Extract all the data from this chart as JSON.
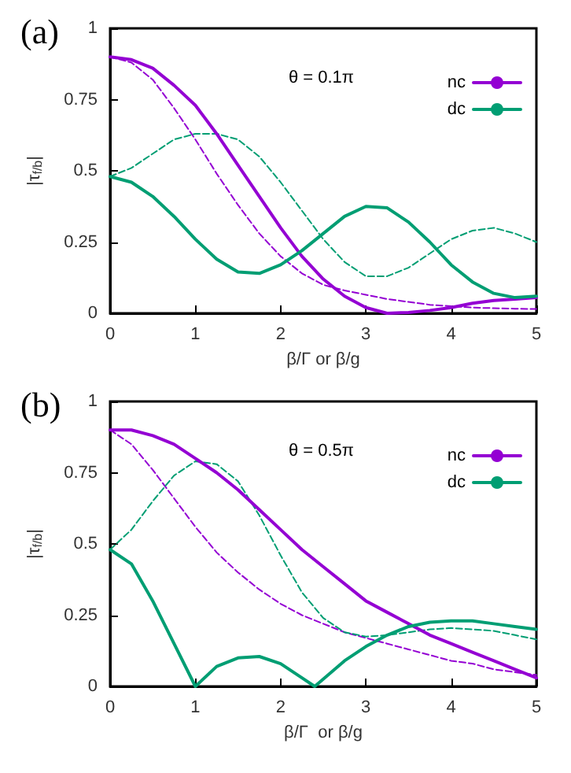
{
  "chart_data": [
    {
      "type": "line",
      "title": "(a)",
      "xlabel": "β/Γ or β/g",
      "ylabel": "|τ$_{f/b}$|",
      "annotations": [
        "θ = 0.1π"
      ],
      "x": [
        0,
        0.25,
        0.5,
        0.75,
        1,
        1.25,
        1.5,
        1.75,
        2,
        2.25,
        2.5,
        2.75,
        3,
        3.25,
        3.5,
        3.75,
        4,
        4.25,
        4.5,
        4.75,
        5
      ],
      "xlim": [
        0,
        5
      ],
      "xticks": [
        0,
        1,
        2,
        3,
        4,
        5
      ],
      "ylim": [
        0,
        1
      ],
      "yticks": [
        0,
        0.25,
        0.5,
        0.75,
        1
      ],
      "grid": false,
      "legend": "top right",
      "series": [
        {
          "name": "nc",
          "color": "#9400d3",
          "line_style": "solid",
          "values": [
            0.9,
            0.89,
            0.86,
            0.8,
            0.73,
            0.63,
            0.52,
            0.41,
            0.3,
            0.2,
            0.12,
            0.06,
            0.02,
            0,
            0.003,
            0.01,
            0.02,
            0.035,
            0.045,
            0.05,
            0.055
          ]
        },
        {
          "name": "dc",
          "color": "#009e73",
          "line_style": "solid",
          "values": [
            0.48,
            0.46,
            0.41,
            0.34,
            0.26,
            0.19,
            0.145,
            0.14,
            0.17,
            0.22,
            0.28,
            0.34,
            0.375,
            0.37,
            0.32,
            0.25,
            0.17,
            0.11,
            0.07,
            0.055,
            0.06
          ]
        },
        {
          "color": "#9400d3",
          "line_style": "dashed",
          "values": [
            0.9,
            0.88,
            0.82,
            0.72,
            0.61,
            0.49,
            0.38,
            0.28,
            0.2,
            0.14,
            0.1,
            0.08,
            0.065,
            0.05,
            0.04,
            0.03,
            0.025,
            0.02,
            0.018,
            0.016,
            0.015
          ]
        },
        {
          "color": "#009e73",
          "line_style": "dashed",
          "values": [
            0.48,
            0.51,
            0.56,
            0.61,
            0.63,
            0.63,
            0.61,
            0.55,
            0.46,
            0.36,
            0.26,
            0.18,
            0.13,
            0.13,
            0.16,
            0.21,
            0.26,
            0.29,
            0.3,
            0.28,
            0.25
          ]
        }
      ]
    },
    {
      "type": "line",
      "title": "(b)",
      "xlabel": "β/Γ  or β/g",
      "ylabel": "|τ$_{f/b}$|",
      "annotations": [
        "θ = 0.5π"
      ],
      "x": [
        0,
        0.25,
        0.5,
        0.75,
        1,
        1.25,
        1.5,
        1.75,
        2,
        2.25,
        2.5,
        2.75,
        3,
        3.25,
        3.5,
        3.75,
        4,
        4.25,
        4.5,
        4.75,
        5
      ],
      "xlim": [
        0,
        5
      ],
      "xticks": [
        0,
        1,
        2,
        3,
        4,
        5
      ],
      "ylim": [
        0,
        1
      ],
      "yticks": [
        0,
        0.25,
        0.5,
        0.75,
        1
      ],
      "grid": false,
      "legend": "top right",
      "series": [
        {
          "name": "nc",
          "color": "#9400d3",
          "line_style": "solid",
          "values": [
            0.9,
            0.9,
            0.88,
            0.85,
            0.8,
            0.75,
            0.69,
            0.62,
            0.55,
            0.48,
            0.42,
            0.36,
            0.3,
            0.26,
            0.22,
            0.18,
            0.15,
            0.12,
            0.09,
            0.06,
            0.03
          ]
        },
        {
          "name": "dc",
          "color": "#009e73",
          "line_style": "solid",
          "x": [
            0,
            0.25,
            0.5,
            0.75,
            1,
            1.25,
            1.5,
            1.75,
            2,
            2.25,
            2.4,
            2.75,
            3,
            3.25,
            3.5,
            3.75,
            4,
            4.25,
            4.5,
            4.75,
            5
          ],
          "values": [
            0.48,
            0.43,
            0.3,
            0.15,
            0,
            0.07,
            0.1,
            0.105,
            0.08,
            0.03,
            0,
            0.09,
            0.14,
            0.18,
            0.21,
            0.225,
            0.23,
            0.23,
            0.22,
            0.21,
            0.2
          ]
        },
        {
          "color": "#9400d3",
          "line_style": "dashed",
          "values": [
            0.9,
            0.85,
            0.76,
            0.66,
            0.56,
            0.47,
            0.4,
            0.34,
            0.29,
            0.25,
            0.22,
            0.19,
            0.17,
            0.15,
            0.13,
            0.11,
            0.09,
            0.08,
            0.06,
            0.05,
            0.04
          ]
        },
        {
          "color": "#009e73",
          "line_style": "dashed",
          "values": [
            0.48,
            0.55,
            0.65,
            0.74,
            0.79,
            0.78,
            0.72,
            0.6,
            0.46,
            0.33,
            0.24,
            0.19,
            0.175,
            0.18,
            0.19,
            0.2,
            0.205,
            0.2,
            0.195,
            0.18,
            0.165
          ]
        }
      ]
    }
  ]
}
